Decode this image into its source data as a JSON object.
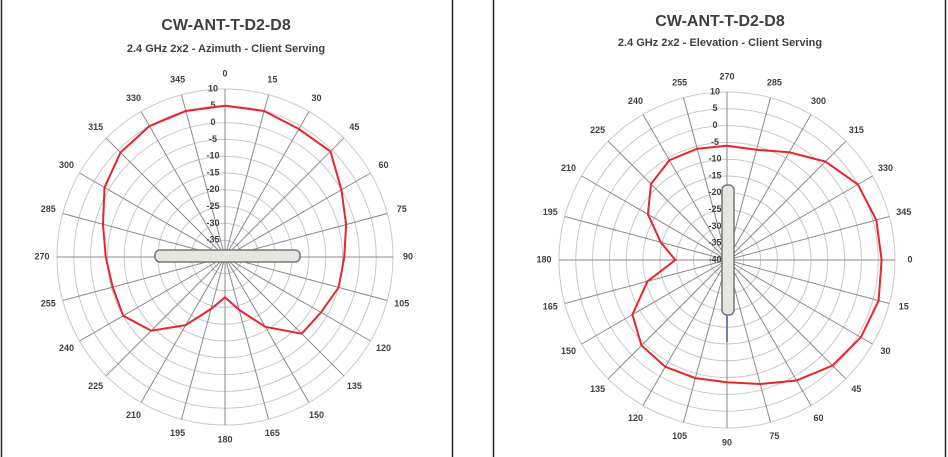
{
  "chart_data": [
    {
      "type": "polar",
      "title": "CW-ANT-T-D2-D8",
      "subtitle": "2.4 GHz 2x2 - Azimuth - Client Serving",
      "categories": [
        0,
        15,
        30,
        45,
        60,
        75,
        90,
        105,
        120,
        135,
        150,
        165,
        180,
        195,
        210,
        225,
        240,
        255,
        270,
        285,
        300,
        315,
        330,
        345
      ],
      "values": [
        5,
        5,
        4,
        4.4,
        0,
        -2.7,
        -4.5,
        -5,
        -7,
        -7.7,
        -16,
        -23.7,
        -28,
        -24,
        -16.6,
        -9,
        -5,
        -5.4,
        -4.5,
        -2.4,
        1.4,
        4,
        5,
        5
      ],
      "color": "#e8262a",
      "rlim": [
        -40,
        10
      ],
      "rticks": [
        -40,
        -35,
        -30,
        -25,
        -20,
        -15,
        -10,
        -5,
        0,
        5,
        10
      ],
      "grid": true
    },
    {
      "type": "polar",
      "title": "CW-ANT-T-D2-D8",
      "subtitle": "2.4 GHz 2x2 - Elevation - Client Serving",
      "categories": [
        270,
        285,
        300,
        315,
        330,
        345,
        0,
        15,
        30,
        45,
        60,
        75,
        90,
        105,
        120,
        135,
        150,
        165,
        180,
        195,
        210,
        225,
        240,
        255
      ],
      "values": [
        -6,
        -6,
        -3,
        1.4,
        5,
        6,
        6,
        6.7,
        6,
        4.4,
        1.4,
        -1.8,
        -3.6,
        -3.6,
        -3.3,
        -4,
        -7.5,
        -15.5,
        -24.6,
        -19.6,
        -12.8,
        -8,
        -5.7,
        -5.7
      ],
      "color": "#e8262a",
      "rlim": [
        -40,
        10
      ],
      "rticks": [
        -40,
        -35,
        -30,
        -25,
        -20,
        -15,
        -10,
        -5,
        0,
        5,
        10
      ],
      "grid": true
    }
  ]
}
